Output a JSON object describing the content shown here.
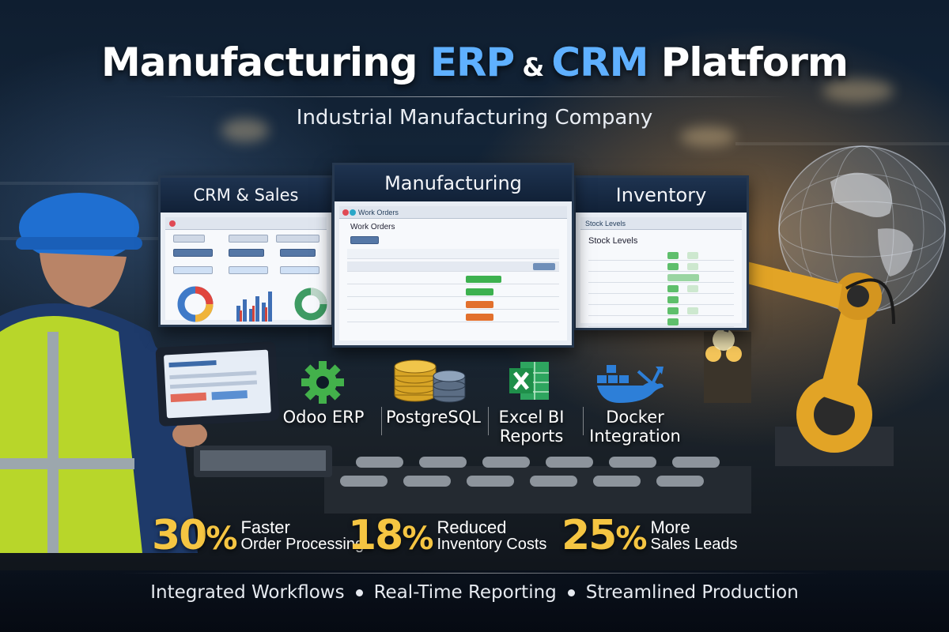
{
  "title": {
    "part1": "Manufacturing ",
    "part2": "ERP",
    "amp": " & ",
    "part3": "CRM",
    "part4": " Platform"
  },
  "subtitle": "Industrial Manufacturing Company",
  "panels": {
    "crm": {
      "title": "CRM & Sales"
    },
    "manufacturing": {
      "title": "Manufacturing",
      "window_title": "Work Orders",
      "tab": "Work Orders"
    },
    "inventory": {
      "title": "Inventory",
      "window_title": "Stock Levels",
      "heading": "Stock Levels"
    }
  },
  "tech": {
    "odoo": "Odoo ERP",
    "postgres": "PostgreSQL",
    "excel_line1": "Excel BI",
    "excel_line2": "Reports",
    "docker_line1": "Docker",
    "docker_line2": "Integration"
  },
  "stats": [
    {
      "value": "30",
      "unit": "%",
      "line1": "Faster",
      "line2": "Order Processing"
    },
    {
      "value": "18",
      "unit": "%",
      "line1": "Reduced",
      "line2": "Inventory Costs"
    },
    {
      "value": "25",
      "unit": "%",
      "line1": "More",
      "line2": "Sales Leads"
    }
  ],
  "footer": {
    "item1": "Integrated Workflows",
    "item2": "Real-Time Reporting",
    "item3": "Streamlined Production"
  },
  "colors": {
    "accent_blue": "#5fb0ff",
    "stat_gold": "#f5c542",
    "gear_green": "#43b14b",
    "excel_green": "#1f8f4a",
    "docker_blue": "#2d7fd8",
    "robot_orange": "#e2a426"
  }
}
